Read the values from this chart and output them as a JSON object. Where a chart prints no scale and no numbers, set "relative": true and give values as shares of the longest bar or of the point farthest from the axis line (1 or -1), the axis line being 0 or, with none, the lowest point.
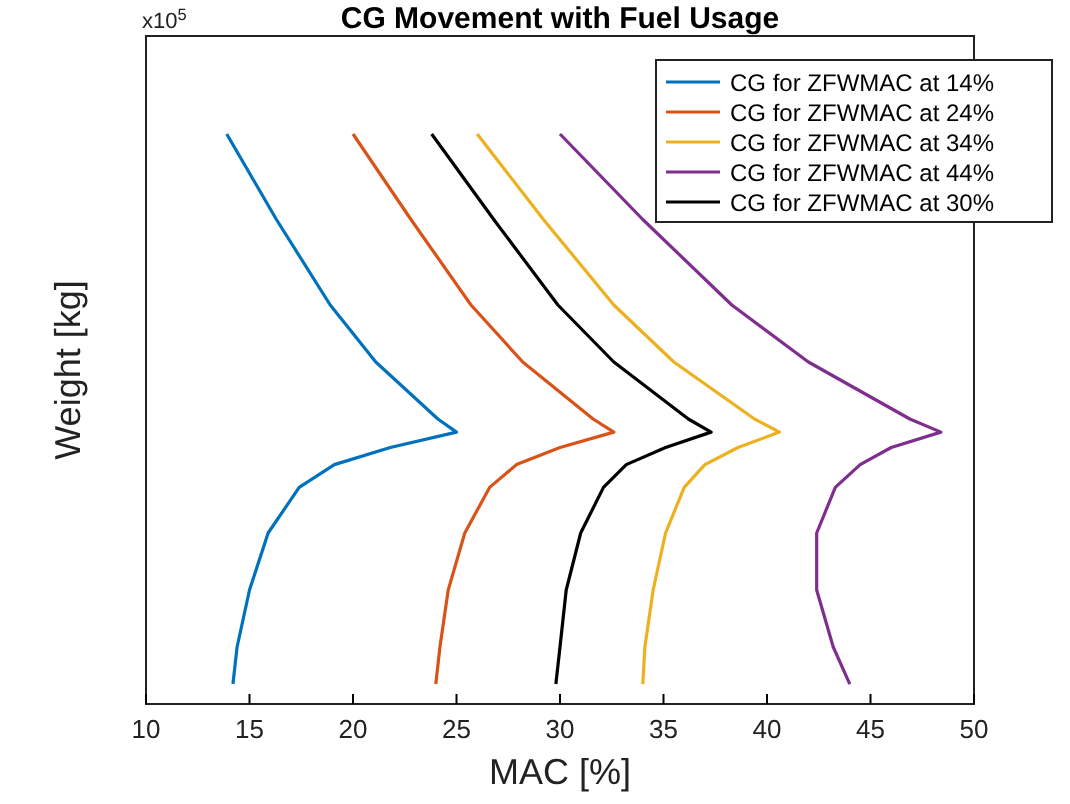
{
  "chart_data": {
    "type": "line",
    "title": "CG Movement with Fuel Usage",
    "xlabel": "MAC [%]",
    "ylabel": "Weight [kg]",
    "annotations": [
      "x10$^{5}$"
    ],
    "relative": true,
    "xlim": [
      10,
      50
    ],
    "xticks": [
      10,
      15,
      20,
      25,
      30,
      35,
      40,
      45,
      50
    ],
    "grid": false,
    "legend": "top right",
    "marker": "none",
    "line_style": "solid",
    "series": [
      {
        "name": "CG for ZFWMAC at 14%",
        "color": "#0072bd",
        "x": [
          13.9,
          16.3,
          18.9,
          21.1,
          24.1,
          25,
          21.8,
          19.1,
          17.4,
          15.9,
          15.0,
          14.4,
          14.2
        ],
        "values": [
          1,
          0.85,
          0.7,
          0.6,
          0.5,
          0.477,
          0.45,
          0.42,
          0.38,
          0.3,
          0.2,
          0.1,
          0.035
        ]
      },
      {
        "name": "CG for ZFWMAC at 24%",
        "color": "#d95319",
        "x": [
          20,
          22.8,
          25.7,
          28.2,
          31.6,
          32.6,
          30.0,
          27.9,
          26.6,
          25.4,
          24.6,
          24.2,
          24
        ],
        "values": [
          1,
          0.85,
          0.7,
          0.6,
          0.5,
          0.477,
          0.45,
          0.42,
          0.38,
          0.3,
          0.2,
          0.1,
          0.035
        ]
      },
      {
        "name": "CG for ZFWMAC at 34%",
        "color": "#edb120",
        "x": [
          26,
          29.2,
          32.6,
          35.5,
          39.4,
          40.6,
          38.6,
          37.0,
          36.0,
          35.1,
          34.5,
          34.1,
          34
        ],
        "values": [
          1,
          0.85,
          0.7,
          0.6,
          0.5,
          0.477,
          0.45,
          0.42,
          0.38,
          0.3,
          0.2,
          0.1,
          0.035
        ]
      },
      {
        "name": "CG for ZFWMAC at 44%",
        "color": "#7e2f8e",
        "x": [
          30,
          34.0,
          38.3,
          42.0,
          46.9,
          48.4,
          46.0,
          44.5,
          43.3,
          42.4,
          42.4,
          43.2,
          44
        ],
        "values": [
          1,
          0.85,
          0.7,
          0.6,
          0.5,
          0.477,
          0.45,
          0.42,
          0.38,
          0.3,
          0.2,
          0.1,
          0.035
        ]
      },
      {
        "name": "CG for ZFWMAC at 30%",
        "color": "#000000",
        "x": [
          23.8,
          26.8,
          29.9,
          32.6,
          36.2,
          37.3,
          35.1,
          33.2,
          32.1,
          31.0,
          30.3,
          30.0,
          29.8
        ],
        "values": [
          1,
          0.85,
          0.7,
          0.6,
          0.5,
          0.477,
          0.45,
          0.42,
          0.38,
          0.3,
          0.2,
          0.1,
          0.035
        ]
      }
    ]
  }
}
